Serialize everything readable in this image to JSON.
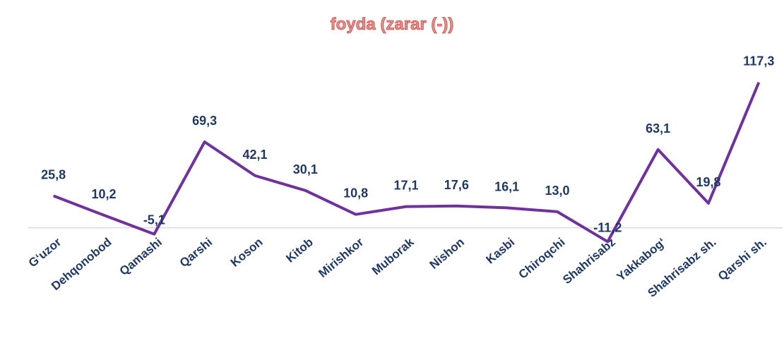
{
  "chart_data": {
    "type": "line",
    "title": "foyda (zarar (-))",
    "categories": [
      "G‘uzor",
      "Dehqonobod",
      "Qamashi",
      "Qarshi",
      "Koson",
      "Kitob",
      "Mirishkor",
      "Muborak",
      "Nishon",
      "Kasbi",
      "Chiroqchi",
      "Shahrisabz",
      "Yakkabog‘",
      "Shahrisabz sh.",
      "Qarshi sh."
    ],
    "values": [
      25.8,
      10.2,
      -5.1,
      69.3,
      42.1,
      30.1,
      10.8,
      17.1,
      17.6,
      16.1,
      13.0,
      -11.2,
      63.1,
      19.8,
      117.3
    ],
    "value_labels": [
      "25,8",
      "10,2",
      "-5,1",
      "69,3",
      "42,1",
      "30,1",
      "10,8",
      "17,1",
      "17,6",
      "16,1",
      "13,0",
      "-11,2",
      "63,1",
      "19,8",
      "117,3"
    ],
    "color": "#7030a0",
    "ylim": [
      -15,
      120
    ]
  }
}
